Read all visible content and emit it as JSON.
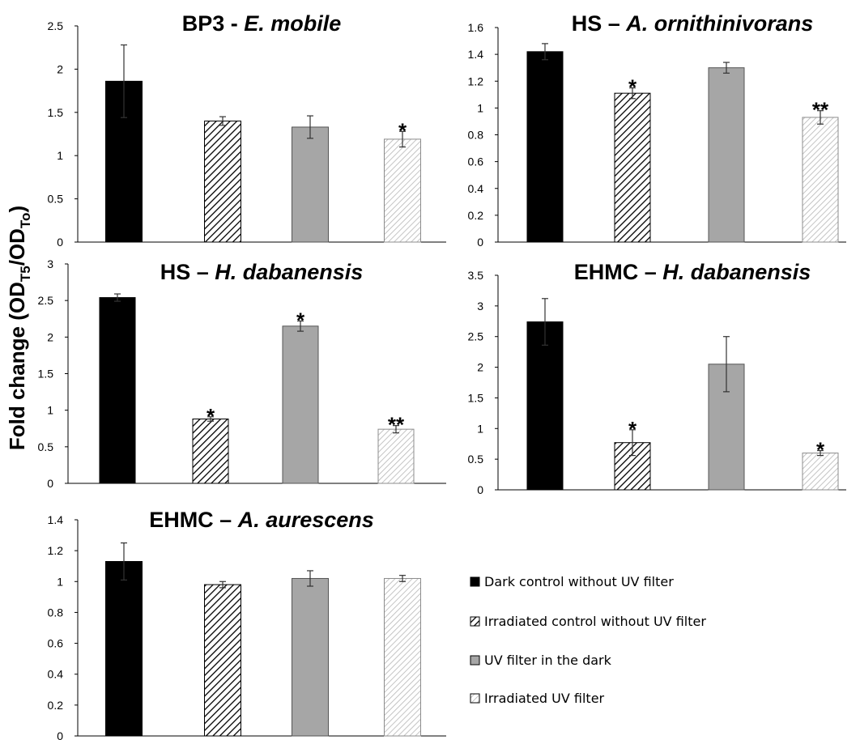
{
  "figure": {
    "y_axis_label": {
      "main": "Fold change (OD",
      "sub1": "T5",
      "mid": "/OD",
      "sub2": "To",
      "end": ")"
    }
  },
  "legend": [
    {
      "label": "Dark control without UV filter",
      "style": "solid-black"
    },
    {
      "label": "Irradiated control without UV filter",
      "style": "dense-hatch"
    },
    {
      "label": "UV filter in the dark",
      "style": "solid-gray"
    },
    {
      "label": "Irradiated UV filter",
      "style": "light-hatch"
    }
  ],
  "colors": {
    "dark": "#000000",
    "gray": "#a6a6a6",
    "light_hatch": "#bdbdbd",
    "axis": "#000000"
  },
  "chart_data": [
    {
      "type": "bar",
      "title_plain": "BP3 - ",
      "title_italic": "E. mobile",
      "categories": [
        "Dark control without UV filter",
        "Irradiated control without UV filter",
        "UV filter in the dark",
        "Irradiated UV filter"
      ],
      "values": [
        1.86,
        1.4,
        1.33,
        1.19
      ],
      "errors": [
        0.42,
        0.05,
        0.13,
        0.09
      ],
      "significance": [
        "",
        "",
        "",
        "*"
      ],
      "ylim": [
        0,
        2.5
      ],
      "yticks": [
        0,
        0.5,
        1,
        1.5,
        2,
        2.5
      ],
      "ytick_labels": [
        "0",
        "0.5",
        "1",
        "1.5",
        "2",
        "2.5"
      ],
      "grid": false
    },
    {
      "type": "bar",
      "title_plain": "HS – ",
      "title_italic": "A. ornithinivorans",
      "categories": [
        "Dark control without UV filter",
        "Irradiated control without UV filter",
        "UV filter in the dark",
        "Irradiated UV filter"
      ],
      "values": [
        1.42,
        1.11,
        1.3,
        0.93
      ],
      "errors": [
        0.06,
        0.04,
        0.04,
        0.05
      ],
      "significance": [
        "",
        "*",
        "",
        "**"
      ],
      "ylim": [
        0,
        1.6
      ],
      "yticks": [
        0,
        0.2,
        0.4,
        0.6,
        0.8,
        1,
        1.2,
        1.4,
        1.6
      ],
      "ytick_labels": [
        "0",
        "0.2",
        "0.4",
        "0.6",
        "0.8",
        "1",
        "1.2",
        "1.4",
        "1.6"
      ],
      "grid": false
    },
    {
      "type": "bar",
      "title_plain": "HS – ",
      "title_italic": "H. dabanensis",
      "categories": [
        "Dark control without UV filter",
        "Irradiated control without UV filter",
        "UV filter in the dark",
        "Irradiated UV filter"
      ],
      "values": [
        2.54,
        0.88,
        2.15,
        0.74
      ],
      "errors": [
        0.05,
        0.03,
        0.07,
        0.05
      ],
      "significance": [
        "",
        "*",
        "*",
        "**"
      ],
      "ylim": [
        0,
        3
      ],
      "yticks": [
        0,
        0.5,
        1,
        1.5,
        2,
        2.5,
        3
      ],
      "ytick_labels": [
        "0",
        "0.5",
        "1",
        "1.5",
        "2",
        "2.5",
        "3"
      ],
      "grid": false
    },
    {
      "type": "bar",
      "title_plain": "EHMC – ",
      "title_italic": "H. dabanensis",
      "categories": [
        "Dark control without UV filter",
        "Irradiated control without UV filter",
        "UV filter in the dark",
        "Irradiated UV filter"
      ],
      "values": [
        2.74,
        0.77,
        2.05,
        0.6
      ],
      "errors": [
        0.38,
        0.21,
        0.45,
        0.04
      ],
      "significance": [
        "",
        "*",
        "",
        "*"
      ],
      "ylim": [
        0,
        3.5
      ],
      "yticks": [
        0,
        0.5,
        1,
        1.5,
        2,
        2.5,
        3,
        3.5
      ],
      "ytick_labels": [
        "0",
        "0.5",
        "1",
        "1.5",
        "2",
        "2.5",
        "3",
        "3.5"
      ],
      "grid": false
    },
    {
      "type": "bar",
      "title_plain": "EHMC – ",
      "title_italic": "A. aurescens",
      "categories": [
        "Dark control without UV filter",
        "Irradiated control without UV filter",
        "UV filter in the dark",
        "Irradiated UV filter"
      ],
      "values": [
        1.13,
        0.98,
        1.02,
        1.02
      ],
      "errors": [
        0.12,
        0.02,
        0.05,
        0.02
      ],
      "significance": [
        "",
        "",
        "",
        ""
      ],
      "ylim": [
        0,
        1.4
      ],
      "yticks": [
        0,
        0.2,
        0.4,
        0.6,
        0.8,
        1,
        1.2,
        1.4
      ],
      "ytick_labels": [
        "0",
        "0.2",
        "0.4",
        "0.6",
        "0.8",
        "1",
        "1.2",
        "1.4"
      ],
      "grid": false
    }
  ]
}
